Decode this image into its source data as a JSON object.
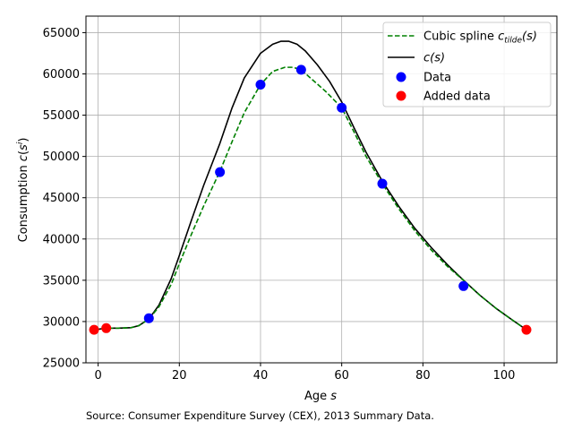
{
  "chart_data": {
    "type": "line",
    "xlabel": "Age s",
    "ylabel": "Consumption c(s')",
    "xlim": [
      -3,
      113
    ],
    "ylim": [
      25000,
      67000
    ],
    "x_ticks": [
      0,
      20,
      40,
      60,
      80,
      100
    ],
    "y_ticks": [
      25000,
      30000,
      35000,
      40000,
      45000,
      50000,
      55000,
      60000,
      65000
    ],
    "grid": true,
    "legend_position": "top-right",
    "series": [
      {
        "name": "Cubic spline c_tilde(s)",
        "kind": "line",
        "style": "dashed",
        "color": "#008000",
        "x": [
          -1,
          2,
          5,
          8,
          10,
          12.5,
          15,
          18,
          20,
          23,
          26,
          30,
          33,
          36,
          40,
          43,
          46,
          48,
          50,
          53,
          56,
          60,
          63,
          66,
          70,
          74,
          78,
          82,
          86,
          90,
          94,
          98,
          102,
          105.5
        ],
        "y": [
          29000,
          29200,
          29200,
          29250,
          29500,
          30300,
          31800,
          34500,
          37000,
          40600,
          44000,
          48200,
          51800,
          55300,
          58700,
          60300,
          60800,
          60800,
          60500,
          59200,
          57900,
          55900,
          53000,
          50000,
          46700,
          43700,
          41000,
          38700,
          36700,
          35000,
          33200,
          31600,
          30200,
          29000
        ]
      },
      {
        "name": "c(s)",
        "kind": "line",
        "style": "solid",
        "color": "#000000",
        "x": [
          -1,
          2,
          5,
          8,
          10,
          12.5,
          15,
          18,
          20,
          23,
          26,
          30,
          33,
          36,
          40,
          43,
          45,
          47,
          49,
          51,
          54,
          57,
          60,
          63,
          66,
          70,
          74,
          78,
          82,
          86,
          90,
          94,
          98,
          102,
          105.5
        ],
        "y": [
          29000,
          29200,
          29200,
          29250,
          29500,
          30300,
          32000,
          35200,
          38000,
          42300,
          46500,
          51600,
          55900,
          59500,
          62500,
          63600,
          63950,
          63950,
          63600,
          62800,
          61100,
          59100,
          56600,
          53500,
          50500,
          47000,
          44000,
          41300,
          39000,
          36900,
          35000,
          33200,
          31600,
          30200,
          29000
        ]
      },
      {
        "name": "Data",
        "kind": "scatter",
        "color": "#0000ff",
        "x": [
          12.5,
          30,
          40,
          50,
          60,
          70,
          90
        ],
        "y": [
          30400,
          48100,
          58700,
          60500,
          55900,
          46700,
          34300
        ]
      },
      {
        "name": "Added data",
        "kind": "scatter",
        "color": "#ff0000",
        "x": [
          -1,
          2,
          105.5
        ],
        "y": [
          29000,
          29200,
          29000
        ]
      }
    ]
  },
  "source_note": "Source: Consumer Expenditure Survey (CEX), 2013 Summary Data.",
  "labels": {
    "xlabel_main": "Age ",
    "xlabel_var": "s",
    "ylabel_main": "Consumption ",
    "ylabel_func": "c",
    "ylabel_open": "(",
    "ylabel_var": "s",
    "ylabel_prime": "i",
    "ylabel_close": ")",
    "legend_spline_main": "Cubic spline ",
    "legend_spline_c": "c",
    "legend_spline_sub": "tilde",
    "legend_spline_arg": "(s)",
    "legend_c_main": "c",
    "legend_c_arg": "(s)",
    "legend_data": "Data",
    "legend_added": "Added data"
  }
}
